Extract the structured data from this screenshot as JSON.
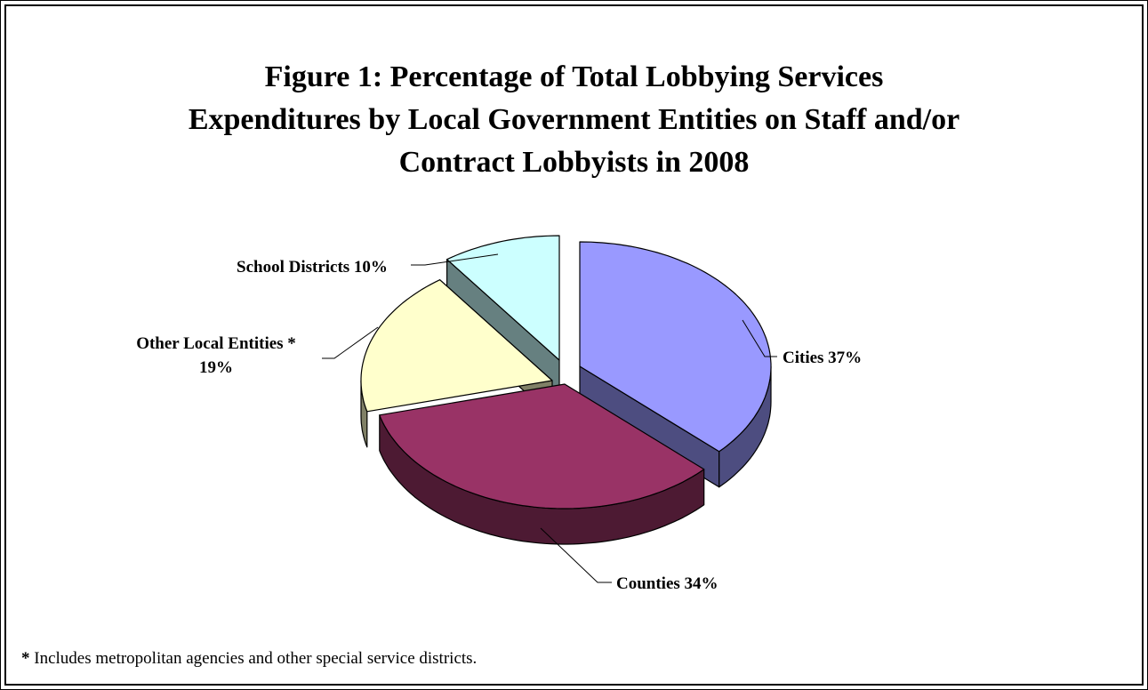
{
  "title_lines": [
    "Figure 1:  Percentage of Total Lobbying Services",
    "Expenditures by Local Government Entities on Staff and/or",
    "Contract Lobbyists in 2008"
  ],
  "footnote": {
    "marker": "*",
    "text": " Includes metropolitan agencies and other special service districts."
  },
  "chart_data": {
    "type": "pie",
    "style": "3d-exploded",
    "title": "Figure 1:  Percentage of Total Lobbying Services Expenditures by Local Government Entities on Staff and/or Contract Lobbyists in 2008",
    "slices": [
      {
        "name": "Cities",
        "value": 37,
        "label": "Cities 37%",
        "color": "#9999ff",
        "side_color": "#4d4d80"
      },
      {
        "name": "Counties",
        "value": 34,
        "label": "Counties 34%",
        "color": "#993366",
        "side_color": "#4d1a33"
      },
      {
        "name": "Other Local Entities *",
        "value": 19,
        "label_lines": [
          "Other Local Entities *",
          "19%"
        ],
        "color": "#ffffcc",
        "side_color": "#808066"
      },
      {
        "name": "School Districts",
        "value": 10,
        "label": "School Districts 10%",
        "color": "#ccffff",
        "side_color": "#668080"
      }
    ],
    "start": "12 o'clock",
    "direction": "clockwise",
    "legend": "none"
  }
}
